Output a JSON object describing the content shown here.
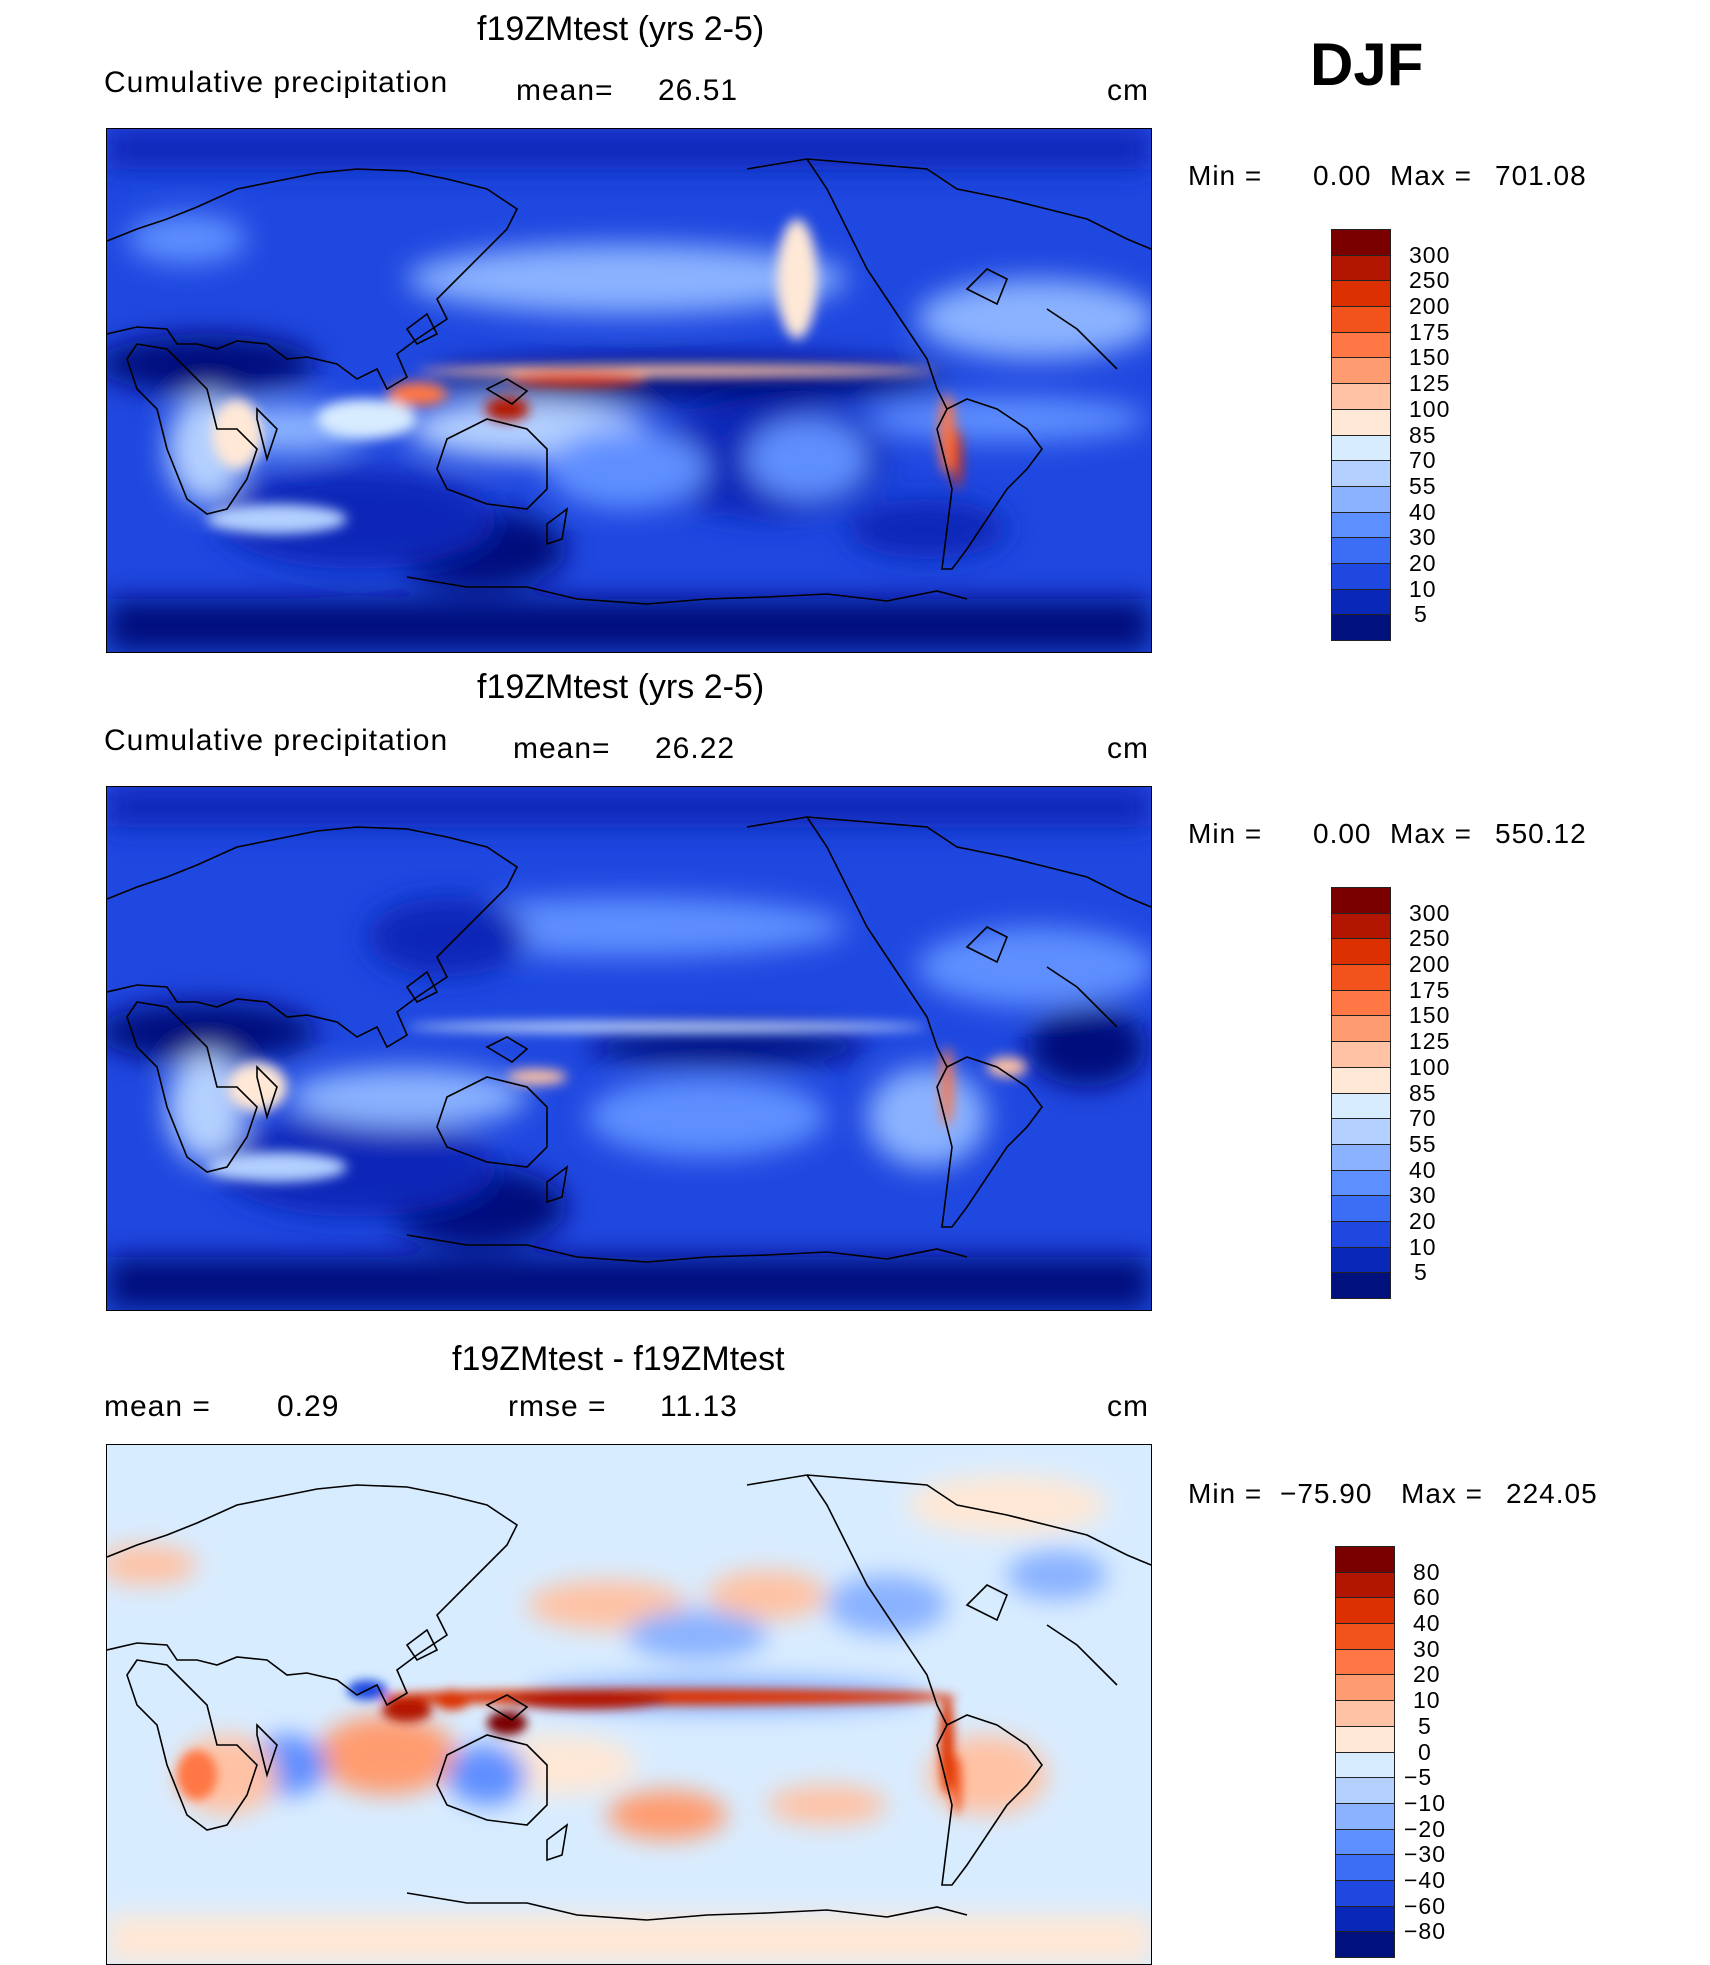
{
  "header": {
    "season": "DJF"
  },
  "panels": [
    {
      "title": "f19ZMtest (yrs 2-5)",
      "left_label": "Cumulative precipitation",
      "stat_label": "mean=",
      "stat_value": "26.51",
      "units": "cm",
      "min_label": "Min =",
      "min_value": "0.00",
      "max_label": "Max =",
      "max_value": "701.08",
      "colorbar_labels": [
        "300",
        "250",
        "200",
        "175",
        "150",
        "125",
        "100",
        "85",
        "70",
        "55",
        "40",
        "30",
        "20",
        "10",
        "5"
      ],
      "colorbar_colors": [
        "#7a0000",
        "#b31600",
        "#dd3000",
        "#f2521c",
        "#ff7744",
        "#ff9b70",
        "#ffc2a4",
        "#ffe8d6",
        "#d8ecff",
        "#b4d0ff",
        "#8ab2ff",
        "#5e8fff",
        "#3c6ef5",
        "#1f48e0",
        "#0a28b8",
        "#00107c"
      ]
    },
    {
      "title": "f19ZMtest (yrs 2-5)",
      "left_label": "Cumulative precipitation",
      "stat_label": "mean=",
      "stat_value": "26.22",
      "units": "cm",
      "min_label": "Min =",
      "min_value": "0.00",
      "max_label": "Max =",
      "max_value": "550.12",
      "colorbar_labels": [
        "300",
        "250",
        "200",
        "175",
        "150",
        "125",
        "100",
        "85",
        "70",
        "55",
        "40",
        "30",
        "20",
        "10",
        "5"
      ],
      "colorbar_colors": [
        "#7a0000",
        "#b31600",
        "#dd3000",
        "#f2521c",
        "#ff7744",
        "#ff9b70",
        "#ffc2a4",
        "#ffe8d6",
        "#d8ecff",
        "#b4d0ff",
        "#8ab2ff",
        "#5e8fff",
        "#3c6ef5",
        "#1f48e0",
        "#0a28b8",
        "#00107c"
      ]
    },
    {
      "title": "f19ZMtest - f19ZMtest",
      "left_label": "mean =",
      "left_value": "0.29",
      "stat_label": "rmse =",
      "stat_value": "11.13",
      "units": "cm",
      "min_label": "Min =",
      "min_value": "−75.90",
      "max_label": "Max =",
      "max_value": "224.05",
      "colorbar_labels": [
        "80",
        "60",
        "40",
        "30",
        "20",
        "10",
        "5",
        "0",
        "−5",
        "−10",
        "−20",
        "−30",
        "−40",
        "−60",
        "−80"
      ],
      "colorbar_colors": [
        "#7a0000",
        "#b31600",
        "#dd3000",
        "#f2521c",
        "#ff7744",
        "#ff9b70",
        "#ffc2a4",
        "#ffe8d6",
        "#d8ecff",
        "#b4d0ff",
        "#8ab2ff",
        "#5e8fff",
        "#3c6ef5",
        "#1f48e0",
        "#0a28b8",
        "#00107c"
      ]
    }
  ]
}
